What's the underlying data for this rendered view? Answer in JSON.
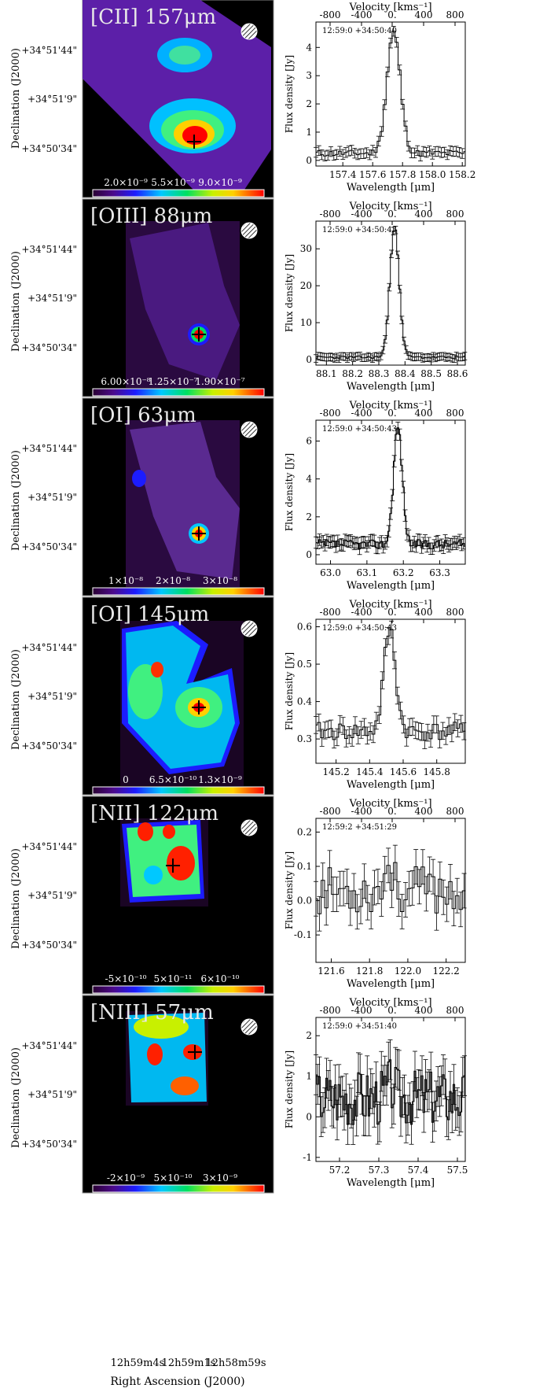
{
  "figure": {
    "x_axis_label": "Right Ascension (J2000)",
    "ra_ticks": [
      "12h59m4s",
      "12h59m1s",
      "12h58m59s"
    ],
    "dec_label": "Declination (J2000)",
    "dec_ticks": [
      "+34°51'44\"",
      "+34°51'9\"",
      "+34°50'34\""
    ]
  },
  "chart_data": [
    {
      "panel": 1,
      "type": "line",
      "title": "[CII] 157μm",
      "coord": "12:59:0 +34:50:40",
      "colorbar_ticks": [
        "2.0×10⁻⁹",
        "5.5×10⁻⁹",
        "9.0×10⁻⁹"
      ],
      "x_label": "Wavelength [μm]",
      "y_label": "Flux density [Jy]",
      "top_label": "Velocity [kms⁻¹]",
      "xlim": [
        157.22,
        158.22
      ],
      "ylim": [
        -0.2,
        4.9
      ],
      "x_ticks": [
        "157.4",
        "157.6",
        "157.8",
        "158.0",
        "158.2"
      ],
      "x_tick_values": [
        157.4,
        157.6,
        157.8,
        158.0,
        158.2
      ],
      "y_ticks": [
        "0",
        "1",
        "2",
        "3",
        "4"
      ],
      "y_tick_values": [
        0,
        1,
        2,
        3,
        4
      ],
      "vel_ticks": [
        "-800",
        "-400",
        "0.",
        "400",
        "800"
      ],
      "line_center": 157.74,
      "line_width": 0.045,
      "line_peak": 4.3,
      "baseline": 0.25,
      "noise": 0.12,
      "bin": 0.02,
      "seed": 11
    },
    {
      "panel": 2,
      "type": "line",
      "title": "[OIII] 88μm",
      "coord": "12:59:0 +34:50:43",
      "colorbar_ticks": [
        "6.00×10⁻⁸",
        "1.25×10⁻⁷",
        "1.90×10⁻⁷"
      ],
      "x_label": "Wavelength [μm]",
      "y_label": "Flux density [Jy]",
      "top_label": "Velocity [kms⁻¹]",
      "xlim": [
        88.06,
        88.63
      ],
      "ylim": [
        -1.5,
        37.5
      ],
      "x_ticks": [
        "88.1",
        "88.2",
        "88.3",
        "88.4",
        "88.5",
        "88.6"
      ],
      "x_tick_values": [
        88.1,
        88.2,
        88.3,
        88.4,
        88.5,
        88.6
      ],
      "y_ticks": [
        "0",
        "10",
        "20",
        "30"
      ],
      "y_tick_values": [
        0,
        10,
        20,
        30
      ],
      "vel_ticks": [
        "-800",
        "-400",
        "0.",
        "400",
        "800"
      ],
      "line_center": 88.36,
      "line_width": 0.018,
      "line_peak": 35,
      "baseline": 0.6,
      "noise": 0.4,
      "bin": 0.008,
      "seed": 23
    },
    {
      "panel": 3,
      "type": "line",
      "title": "[OI] 63μm",
      "coord": "12:59:0 +34:50:43",
      "colorbar_ticks": [
        "1×10⁻⁸",
        "2×10⁻⁸",
        "3×10⁻⁸"
      ],
      "x_label": "Wavelength [μm]",
      "y_label": "Flux density [Jy]",
      "top_label": "Velocity [kms⁻¹]",
      "xlim": [
        62.96,
        63.37
      ],
      "ylim": [
        -0.5,
        7.1
      ],
      "x_ticks": [
        "63.0",
        "63.1",
        "63.2",
        "63.3"
      ],
      "x_tick_values": [
        63.0,
        63.1,
        63.2,
        63.3
      ],
      "y_ticks": [
        "0",
        "2",
        "4",
        "6"
      ],
      "y_tick_values": [
        0,
        2,
        4,
        6
      ],
      "vel_ticks": [
        "-800",
        "-400",
        "0.",
        "400",
        "800"
      ],
      "line_center": 63.185,
      "line_width": 0.012,
      "line_peak": 6.2,
      "baseline": 0.55,
      "noise": 0.25,
      "bin": 0.005,
      "seed": 37
    },
    {
      "panel": 4,
      "type": "line",
      "title": "[OI] 145μm",
      "coord": "12:59:0 +34:50:43",
      "colorbar_ticks": [
        "0",
        "6.5×10⁻¹⁰",
        "1.3×10⁻⁹"
      ],
      "x_label": "Wavelength [μm]",
      "y_label": "Flux density [Jy]",
      "top_label": "Velocity [kms⁻¹]",
      "xlim": [
        145.08,
        145.97
      ],
      "ylim": [
        0.235,
        0.62
      ],
      "x_ticks": [
        "145.2",
        "145.4",
        "145.6",
        "145.8"
      ],
      "x_tick_values": [
        145.2,
        145.4,
        145.6,
        145.8
      ],
      "y_ticks": [
        "0.3",
        "0.4",
        "0.5",
        "0.6"
      ],
      "y_tick_values": [
        0.3,
        0.4,
        0.5,
        0.6
      ],
      "vel_ticks": [
        "-800",
        "-400",
        "0.",
        "400",
        "800"
      ],
      "line_center": 145.52,
      "line_width": 0.035,
      "line_peak": 0.27,
      "baseline": 0.32,
      "noise": 0.025,
      "bin": 0.018,
      "seed": 41
    },
    {
      "panel": 5,
      "type": "line",
      "title": "[NII] 122μm",
      "coord": "12:59:2 +34:51:29",
      "colorbar_ticks": [
        "-5×10⁻¹⁰",
        "5×10⁻¹¹",
        "6×10⁻¹⁰"
      ],
      "x_label": "Wavelength [μm]",
      "y_label": "Flux density [Jy]",
      "top_label": "Velocity [kms⁻¹]",
      "xlim": [
        121.52,
        122.3
      ],
      "ylim": [
        -0.18,
        0.24
      ],
      "x_ticks": [
        "121.6",
        "121.8",
        "122.0",
        "122.2"
      ],
      "x_tick_values": [
        121.6,
        121.8,
        122.0,
        122.2
      ],
      "y_ticks": [
        "-0.1",
        "0.0",
        "0.1",
        "0.2"
      ],
      "y_tick_values": [
        -0.1,
        0.0,
        0.1,
        0.2
      ],
      "vel_ticks": [
        "-800",
        "-400",
        "0.",
        "400",
        "800"
      ],
      "line_center": 121.9,
      "line_width": 0.02,
      "line_peak": 0.08,
      "baseline": 0.03,
      "noise": 0.07,
      "bin": 0.018,
      "seed": 53
    },
    {
      "panel": 6,
      "type": "line",
      "title": "[NIII] 57μm",
      "coord": "12:59:0 +34:51:40",
      "colorbar_ticks": [
        "-2×10⁻⁹",
        "5×10⁻¹⁰",
        "3×10⁻⁹"
      ],
      "x_label": "Wavelength [μm]",
      "y_label": "Flux density [Jy]",
      "top_label": "Velocity [kms⁻¹]",
      "xlim": [
        57.14,
        57.52
      ],
      "ylim": [
        -1.1,
        2.45
      ],
      "x_ticks": [
        "57.2",
        "57.3",
        "57.4",
        "57.5"
      ],
      "x_tick_values": [
        57.2,
        57.3,
        57.4,
        57.5
      ],
      "y_ticks": [
        "-1",
        "0",
        "1",
        "2"
      ],
      "y_tick_values": [
        -1,
        0,
        1,
        2
      ],
      "vel_ticks": [
        "-800",
        "-400",
        "0.",
        "400",
        "800"
      ],
      "line_center": 57.33,
      "line_width": 0.01,
      "line_peak": 0.3,
      "baseline": 0.5,
      "noise": 0.7,
      "bin": 0.0045,
      "seed": 67
    }
  ],
  "colors": {
    "frame": "#000000",
    "map_bg": "#000000",
    "text_on_map": "#e8e8e8"
  }
}
